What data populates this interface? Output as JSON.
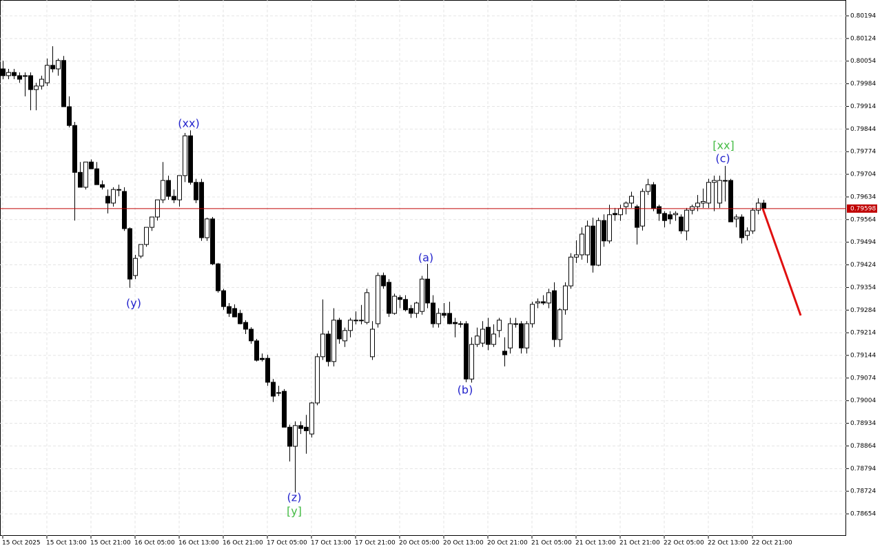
{
  "chart_data": {
    "type": "candlestick",
    "xlim": [
      -0.5,
      153
    ],
    "ylim": [
      0.78586,
      0.80243
    ],
    "grid": true,
    "bull_color": "#ffffff",
    "bear_color": "#000000",
    "yticks": [
      0.80194,
      0.80124,
      0.80054,
      0.79984,
      0.79914,
      0.79844,
      0.79774,
      0.79704,
      0.79634,
      0.79564,
      0.79494,
      0.79424,
      0.79354,
      0.79284,
      0.79214,
      0.79144,
      0.79074,
      0.79004,
      0.78934,
      0.78864,
      0.78794,
      0.78724,
      0.78654
    ],
    "xticks": [
      {
        "value": 0,
        "label": "15 Oct 2025"
      },
      {
        "value": 8,
        "label": "15 Oct 13:00"
      },
      {
        "value": 16,
        "label": "15 Oct 21:00"
      },
      {
        "value": 24,
        "label": "16 Oct 05:00"
      },
      {
        "value": 32,
        "label": "16 Oct 13:00"
      },
      {
        "value": 40,
        "label": "16 Oct 21:00"
      },
      {
        "value": 48,
        "label": "17 Oct 05:00"
      },
      {
        "value": 56,
        "label": "17 Oct 13:00"
      },
      {
        "value": 64,
        "label": "17 Oct 21:00"
      },
      {
        "value": 72,
        "label": "20 Oct 05:00"
      },
      {
        "value": 80,
        "label": "20 Oct 13:00"
      },
      {
        "value": 88,
        "label": "20 Oct 21:00"
      },
      {
        "value": 96,
        "label": "21 Oct 05:00"
      },
      {
        "value": 104,
        "label": "21 Oct 13:00"
      },
      {
        "value": 112,
        "label": "21 Oct 21:00"
      },
      {
        "value": 120,
        "label": "22 Oct 05:00"
      },
      {
        "value": 128,
        "label": "22 Oct 13:00"
      },
      {
        "value": 136,
        "label": "22 Oct 21:00"
      }
    ],
    "last_price": 0.79598,
    "last_price_color": "#c00000",
    "annotations": [
      {
        "text": "(xx)",
        "color": "#2222cc"
      },
      {
        "text": "(y)",
        "color": "#2222cc"
      },
      {
        "text": "(z)",
        "color": "#2222cc"
      },
      {
        "text": "[y]",
        "color": "#44bb44"
      },
      {
        "text": "(a)",
        "color": "#2222cc"
      },
      {
        "text": "(b)",
        "color": "#2222cc"
      },
      {
        "text": "[xx]",
        "color": "#44bb44"
      },
      {
        "text": "(c)",
        "color": "#2222cc"
      }
    ],
    "ohlc": [
      [
        0.8003,
        0.80055,
        0.79998,
        0.80009
      ],
      [
        0.80009,
        0.8003,
        0.79998,
        0.80019
      ],
      [
        0.80019,
        0.8003,
        0.79998,
        0.80009
      ],
      [
        0.80009,
        0.80019,
        0.79987,
        0.79998
      ],
      [
        0.80009,
        0.80019,
        0.79945,
        0.80009
      ],
      [
        0.80009,
        0.80019,
        0.79902,
        0.79966
      ],
      [
        0.79966,
        0.79987,
        0.79902,
        0.79977
      ],
      [
        0.79977,
        0.80009,
        0.79966,
        0.79998
      ],
      [
        0.79987,
        0.80062,
        0.79977,
        0.80041
      ],
      [
        0.80041,
        0.801,
        0.80019,
        0.8003
      ],
      [
        0.8003,
        0.80062,
        0.80009,
        0.80056
      ],
      [
        0.80056,
        0.8007,
        0.79913,
        0.79913
      ],
      [
        0.79913,
        0.79945,
        0.79849,
        0.79855
      ],
      [
        0.79855,
        0.79866,
        0.79561,
        0.7971
      ],
      [
        0.7971,
        0.79742,
        0.79664,
        0.79664
      ],
      [
        0.79664,
        0.79742,
        0.79657,
        0.79742
      ],
      [
        0.79742,
        0.7975,
        0.79721,
        0.79721
      ],
      [
        0.79721,
        0.79742,
        0.79672,
        0.79672
      ],
      [
        0.79672,
        0.79685,
        0.79657,
        0.79664
      ],
      [
        0.79636,
        0.79657,
        0.79583,
        0.79615
      ],
      [
        0.79615,
        0.79664,
        0.79604,
        0.79657
      ],
      [
        0.79657,
        0.79672,
        0.79636,
        0.79657
      ],
      [
        0.79651,
        0.79664,
        0.79529,
        0.79536
      ],
      [
        0.79536,
        0.7954,
        0.79353,
        0.7938
      ],
      [
        0.79391,
        0.79455,
        0.7938,
        0.79444
      ],
      [
        0.79451,
        0.79487,
        0.79444,
        0.79487
      ],
      [
        0.79487,
        0.7954,
        0.7948,
        0.7954
      ],
      [
        0.7954,
        0.79572,
        0.79529,
        0.79572
      ],
      [
        0.79572,
        0.79625,
        0.79561,
        0.79625
      ],
      [
        0.79625,
        0.79742,
        0.79615,
        0.79685
      ],
      [
        0.79685,
        0.797,
        0.79625,
        0.79636
      ],
      [
        0.79636,
        0.79657,
        0.79615,
        0.79625
      ],
      [
        0.79625,
        0.797,
        0.79604,
        0.797
      ],
      [
        0.797,
        0.79832,
        0.7968,
        0.79823
      ],
      [
        0.79823,
        0.7984,
        0.79672,
        0.79679
      ],
      [
        0.79679,
        0.7969,
        0.79615,
        0.79625
      ],
      [
        0.79679,
        0.7969,
        0.79498,
        0.79508
      ],
      [
        0.79508,
        0.7957,
        0.79498,
        0.79566
      ],
      [
        0.79566,
        0.79572,
        0.79423,
        0.79427
      ],
      [
        0.79427,
        0.7943,
        0.79338,
        0.79344
      ],
      [
        0.79344,
        0.7935,
        0.79285,
        0.79295
      ],
      [
        0.79295,
        0.79306,
        0.79263,
        0.79274
      ],
      [
        0.79289,
        0.79302,
        0.79263,
        0.79263
      ],
      [
        0.79274,
        0.79285,
        0.7924,
        0.79242
      ],
      [
        0.79246,
        0.79253,
        0.7921,
        0.79225
      ],
      [
        0.79225,
        0.79231,
        0.7918,
        0.79189
      ],
      [
        0.79189,
        0.79195,
        0.79125,
        0.79129
      ],
      [
        0.79135,
        0.7915,
        0.79125,
        0.79131
      ],
      [
        0.79135,
        0.79146,
        0.7905,
        0.79061
      ],
      [
        0.79061,
        0.79071,
        0.79,
        0.79018
      ],
      [
        0.79029,
        0.7905,
        0.79018,
        0.79029
      ],
      [
        0.79033,
        0.7904,
        0.78922,
        0.78922
      ],
      [
        0.78922,
        0.7893,
        0.78816,
        0.78863
      ],
      [
        0.78863,
        0.7894,
        0.7872,
        0.78927
      ],
      [
        0.78927,
        0.7894,
        0.78901,
        0.78918
      ],
      [
        0.78922,
        0.7896,
        0.7884,
        0.78911
      ],
      [
        0.78901,
        0.79,
        0.7889,
        0.78997
      ],
      [
        0.78997,
        0.7915,
        0.7899,
        0.7914
      ],
      [
        0.7914,
        0.79317,
        0.7913,
        0.7921
      ],
      [
        0.7921,
        0.7922,
        0.7911,
        0.79125
      ],
      [
        0.79125,
        0.7929,
        0.7911,
        0.79253
      ],
      [
        0.79253,
        0.7926,
        0.7918,
        0.79195
      ],
      [
        0.79189,
        0.7923,
        0.7917,
        0.79221
      ],
      [
        0.79221,
        0.7926,
        0.792,
        0.79253
      ],
      [
        0.79253,
        0.7928,
        0.7924,
        0.79253
      ],
      [
        0.79253,
        0.793,
        0.7924,
        0.79253
      ],
      [
        0.79246,
        0.7935,
        0.7924,
        0.79338
      ],
      [
        0.7914,
        0.7925,
        0.7913,
        0.79225
      ],
      [
        0.79242,
        0.794,
        0.7923,
        0.79391
      ],
      [
        0.79391,
        0.794,
        0.7935,
        0.79359
      ],
      [
        0.7937,
        0.7938,
        0.79263,
        0.79274
      ],
      [
        0.79274,
        0.79335,
        0.7927,
        0.79327
      ],
      [
        0.79323,
        0.7933,
        0.7929,
        0.79317
      ],
      [
        0.79317,
        0.7933,
        0.7928,
        0.79285
      ],
      [
        0.79289,
        0.793,
        0.7926,
        0.79274
      ],
      [
        0.79274,
        0.7931,
        0.7926,
        0.79306
      ],
      [
        0.7928,
        0.7939,
        0.7927,
        0.7938
      ],
      [
        0.7938,
        0.79427,
        0.7929,
        0.79306
      ],
      [
        0.79306,
        0.7933,
        0.7923,
        0.79242
      ],
      [
        0.79242,
        0.7929,
        0.7923,
        0.79274
      ],
      [
        0.79274,
        0.79306,
        0.7926,
        0.79268
      ],
      [
        0.79274,
        0.7931,
        0.7924,
        0.79242
      ],
      [
        0.79246,
        0.7926,
        0.792,
        0.79242
      ],
      [
        0.79242,
        0.7925,
        0.7923,
        0.79242
      ],
      [
        0.79242,
        0.7925,
        0.79061,
        0.79071
      ],
      [
        0.79071,
        0.792,
        0.7906,
        0.79178
      ],
      [
        0.79178,
        0.7923,
        0.7917,
        0.79204
      ],
      [
        0.79182,
        0.7925,
        0.7917,
        0.79225
      ],
      [
        0.79231,
        0.7926,
        0.7916,
        0.79178
      ],
      [
        0.79178,
        0.7924,
        0.7917,
        0.7921
      ],
      [
        0.79221,
        0.7926,
        0.792,
        0.79253
      ],
      [
        0.79157,
        0.792,
        0.7911,
        0.79146
      ],
      [
        0.79167,
        0.7926,
        0.7915,
        0.79242
      ],
      [
        0.79242,
        0.7926,
        0.7923,
        0.79242
      ],
      [
        0.79242,
        0.7925,
        0.7915,
        0.79167
      ],
      [
        0.79167,
        0.7925,
        0.7915,
        0.79242
      ],
      [
        0.79242,
        0.7931,
        0.7923,
        0.79302
      ],
      [
        0.79306,
        0.7932,
        0.7929,
        0.7931
      ],
      [
        0.7931,
        0.7933,
        0.793,
        0.79306
      ],
      [
        0.79306,
        0.7935,
        0.7929,
        0.79338
      ],
      [
        0.79344,
        0.7937,
        0.7917,
        0.79193
      ],
      [
        0.79193,
        0.7929,
        0.7917,
        0.79285
      ],
      [
        0.79285,
        0.7937,
        0.7927,
        0.79359
      ],
      [
        0.79359,
        0.7946,
        0.7935,
        0.79448
      ],
      [
        0.79448,
        0.795,
        0.7943,
        0.79455
      ],
      [
        0.79455,
        0.7954,
        0.7944,
        0.79519
      ],
      [
        0.79455,
        0.79561,
        0.7943,
        0.79544
      ],
      [
        0.79544,
        0.7957,
        0.794,
        0.79423
      ],
      [
        0.79423,
        0.7957,
        0.7942,
        0.79561
      ],
      [
        0.79561,
        0.7958,
        0.7948,
        0.79498
      ],
      [
        0.79498,
        0.7961,
        0.7949,
        0.79579
      ],
      [
        0.79583,
        0.796,
        0.7956,
        0.79579
      ],
      [
        0.79579,
        0.7961,
        0.7956,
        0.79598
      ],
      [
        0.79604,
        0.7962,
        0.7958,
        0.79615
      ],
      [
        0.79615,
        0.7965,
        0.796,
        0.79636
      ],
      [
        0.79604,
        0.7961,
        0.79487,
        0.7954
      ],
      [
        0.79544,
        0.7966,
        0.7953,
        0.79651
      ],
      [
        0.79651,
        0.7969,
        0.7964,
        0.79672
      ],
      [
        0.79672,
        0.7968,
        0.7959,
        0.79598
      ],
      [
        0.79604,
        0.7961,
        0.7956,
        0.79583
      ],
      [
        0.79583,
        0.7959,
        0.7954,
        0.79561
      ],
      [
        0.79579,
        0.7959,
        0.7955,
        0.79566
      ],
      [
        0.79579,
        0.7959,
        0.7956,
        0.79583
      ],
      [
        0.79572,
        0.7958,
        0.7952,
        0.79529
      ],
      [
        0.79529,
        0.796,
        0.795,
        0.79593
      ],
      [
        0.79593,
        0.7961,
        0.7958,
        0.79604
      ],
      [
        0.79604,
        0.7964,
        0.7959,
        0.79615
      ],
      [
        0.79615,
        0.7966,
        0.796,
        0.7962
      ],
      [
        0.79615,
        0.7969,
        0.796,
        0.79679
      ],
      [
        0.79679,
        0.797,
        0.7959,
        0.79685
      ],
      [
        0.79615,
        0.797,
        0.796,
        0.79685
      ],
      [
        0.79685,
        0.7973,
        0.7962,
        0.79685
      ],
      [
        0.79685,
        0.7969,
        0.79557,
        0.79557
      ],
      [
        0.79566,
        0.7958,
        0.7954,
        0.79572
      ],
      [
        0.79572,
        0.7958,
        0.7949,
        0.79508
      ],
      [
        0.79515,
        0.7954,
        0.795,
        0.79529
      ],
      [
        0.79529,
        0.796,
        0.7952,
        0.79593
      ],
      [
        0.79593,
        0.7963,
        0.7958,
        0.79615
      ],
      [
        0.79615,
        0.79625,
        0.7959,
        0.79598
      ]
    ]
  }
}
